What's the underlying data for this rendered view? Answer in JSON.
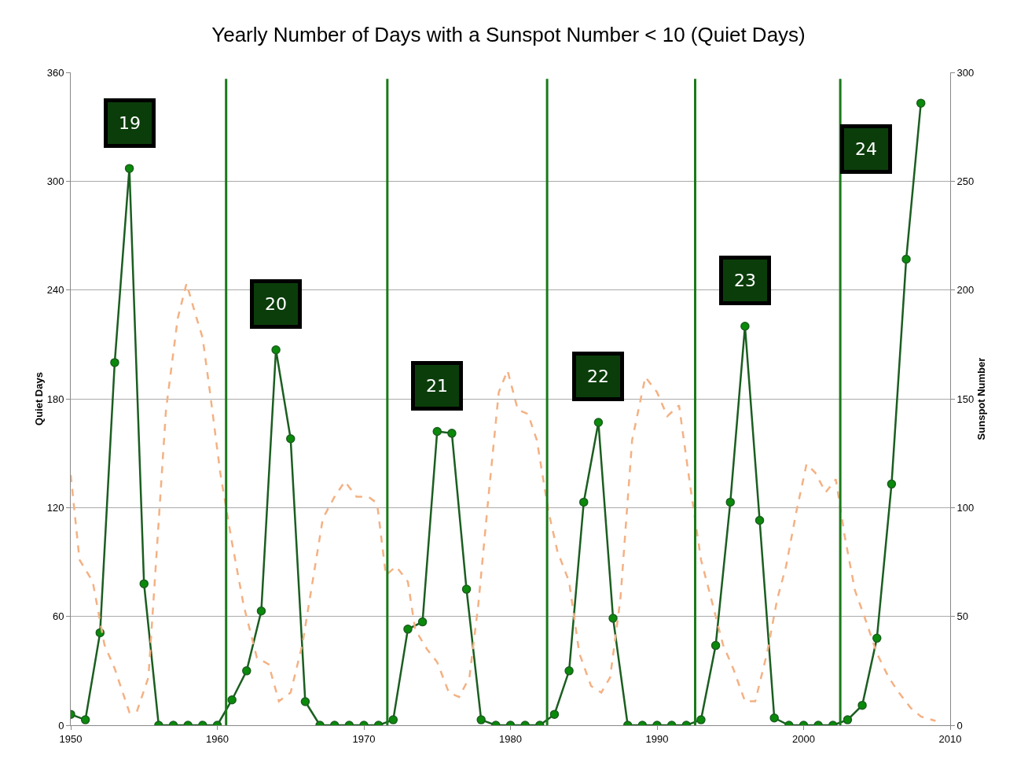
{
  "chart_data": {
    "type": "line",
    "title": "Yearly Number of Days with a Sunspot Number < 10 (Quiet Days)",
    "ylabel": "Quiet Days",
    "y2label": "Sunspot Number",
    "xlim": [
      1950,
      2010
    ],
    "xticks": [
      1950,
      1960,
      1970,
      1980,
      1990,
      2000,
      2010
    ],
    "ylim": [
      0,
      360
    ],
    "yticks": [
      0,
      60,
      120,
      180,
      240,
      300,
      360
    ],
    "y2lim": [
      0,
      300
    ],
    "y2ticks": [
      0,
      50,
      100,
      150,
      200,
      250,
      300
    ],
    "grid": "y",
    "series": [
      {
        "color": "#1b5e20",
        "marker": "circle",
        "line_style": "solid",
        "x": [
          1950,
          1951,
          1952,
          1953,
          1954,
          1955,
          1956,
          1957,
          1958,
          1959,
          1960,
          1961,
          1962,
          1963,
          1964,
          1965,
          1966,
          1967,
          1968,
          1969,
          1970,
          1971,
          1972,
          1973,
          1974,
          1975,
          1976,
          1977,
          1978,
          1979,
          1980,
          1981,
          1982,
          1983,
          1984,
          1985,
          1986,
          1987,
          1988,
          1989,
          1990,
          1991,
          1992,
          1993,
          1994,
          1995,
          1996,
          1997,
          1998,
          1999,
          2000,
          2001,
          2002,
          2003,
          2004,
          2005,
          2006,
          2007,
          2008
        ],
        "values": [
          6,
          3,
          51,
          200,
          307,
          78,
          0,
          0,
          0,
          0,
          0,
          14,
          30,
          63,
          207,
          158,
          13,
          0,
          0,
          0,
          0,
          0,
          3,
          53,
          57,
          162,
          161,
          75,
          3,
          0,
          0,
          0,
          0,
          6,
          30,
          123,
          167,
          59,
          0,
          0,
          0,
          0,
          0,
          3,
          44,
          123,
          220,
          113,
          4,
          0,
          0,
          0,
          0,
          3,
          11,
          48,
          133,
          257,
          343
        ]
      },
      {
        "color": "#f4b183",
        "marker": "none",
        "line_style": "dashed",
        "axis": "y2",
        "x": [
          1950,
          1950.6,
          1951.5,
          1952.3,
          1953,
          1954,
          1954.5,
          1955.3,
          1955.8,
          1956.5,
          1957.3,
          1957.9,
          1958.5,
          1959,
          1959.5,
          1960.2,
          1961,
          1961.8,
          1962.7,
          1963.5,
          1964.2,
          1965,
          1965.8,
          1966.5,
          1967.2,
          1968,
          1968.7,
          1969.5,
          1970.3,
          1970.9,
          1971.5,
          1972.2,
          1973,
          1973.5,
          1974.3,
          1975,
          1975.8,
          1976.5,
          1977.2,
          1977.8,
          1978.5,
          1979.2,
          1979.8,
          1980.5,
          1981.2,
          1981.8,
          1982.6,
          1983.2,
          1984,
          1984.7,
          1985.5,
          1986.2,
          1986.8,
          1987.5,
          1988.3,
          1989.2,
          1990,
          1990.7,
          1991.5,
          1992.2,
          1993,
          1993.7,
          1994.5,
          1995.2,
          1996,
          1996.7,
          1997.5,
          1998.2,
          1998.8,
          1999.5,
          2000.2,
          2000.8,
          2001.5,
          2002.2,
          2002.8,
          2003.5,
          2004.3,
          2005,
          2005.8,
          2006.5,
          2007.3,
          2008,
          2009
        ],
        "values": [
          115,
          76,
          66,
          37,
          26,
          6,
          6,
          22,
          73,
          145,
          187,
          203,
          189,
          178,
          153,
          116,
          84,
          55,
          31,
          28,
          11,
          15,
          37,
          66,
          95,
          105,
          112,
          105,
          105,
          102,
          69,
          73,
          66,
          44,
          35,
          29,
          15,
          13,
          22,
          55,
          105,
          153,
          163,
          145,
          143,
          131,
          98,
          80,
          66,
          33,
          18,
          15,
          22,
          58,
          131,
          160,
          153,
          142,
          147,
          113,
          76,
          58,
          37,
          26,
          11,
          11,
          33,
          58,
          73,
          98,
          120,
          116,
          107,
          113,
          87,
          62,
          47,
          33,
          22,
          15,
          8,
          4,
          2
        ]
      }
    ],
    "ref_lines": [
      {
        "axis": "x",
        "value": 1960.6,
        "color": "#1a7a1a"
      },
      {
        "axis": "x",
        "value": 1971.6,
        "color": "#1a7a1a"
      },
      {
        "axis": "x",
        "value": 1982.5,
        "color": "#1a7a1a"
      },
      {
        "axis": "x",
        "value": 1992.6,
        "color": "#1a7a1a"
      },
      {
        "axis": "x",
        "value": 2002.5,
        "color": "#1a7a1a"
      }
    ],
    "annotations": [
      "19",
      "20",
      "21",
      "22",
      "23",
      "24"
    ]
  }
}
